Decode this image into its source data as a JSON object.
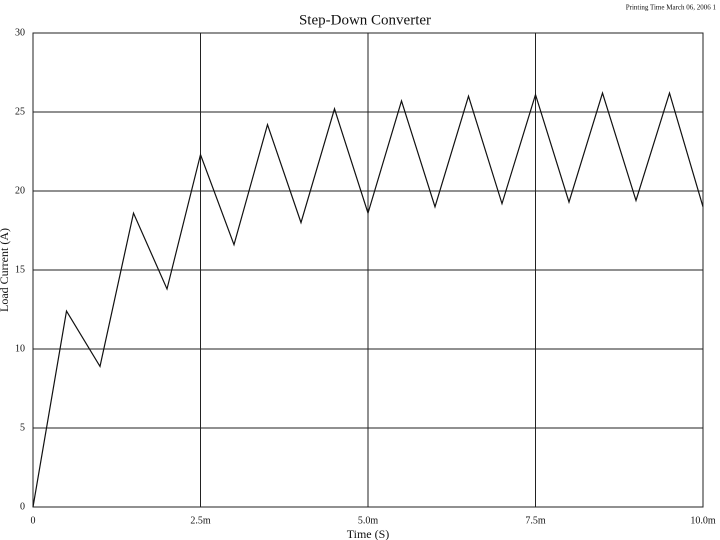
{
  "chart_data": {
    "type": "line",
    "title": "Step-Down Converter",
    "printing_time": "Printing Time March 06, 2006 1",
    "xlabel": "Time (S)",
    "ylabel": "Load Current (A)",
    "x": [
      0,
      0.0005,
      0.001,
      0.0015,
      0.002,
      0.0025,
      0.003,
      0.0035,
      0.004,
      0.0045,
      0.005,
      0.0055,
      0.006,
      0.0065,
      0.007,
      0.0075,
      0.008,
      0.0085,
      0.009,
      0.0095,
      0.01
    ],
    "values": [
      0,
      12.4,
      8.9,
      18.6,
      13.8,
      22.3,
      16.6,
      24.2,
      18.0,
      25.2,
      18.6,
      25.7,
      19.0,
      26.0,
      19.2,
      26.1,
      19.3,
      26.2,
      19.4,
      26.2,
      19.0
    ],
    "color": "#111111",
    "xlim": [
      0,
      0.01
    ],
    "xticks": [
      0,
      {
        "value": 0.0025,
        "label": "2.5m"
      },
      {
        "value": 0.005,
        "label": "5.0m"
      },
      {
        "value": 0.0075,
        "label": "7.5m"
      },
      {
        "value": 0.01,
        "label": "10.0m"
      }
    ],
    "ylim": [
      0,
      30
    ],
    "yticks": [
      0,
      5,
      10,
      15,
      20,
      25,
      30
    ],
    "grid": true
  }
}
